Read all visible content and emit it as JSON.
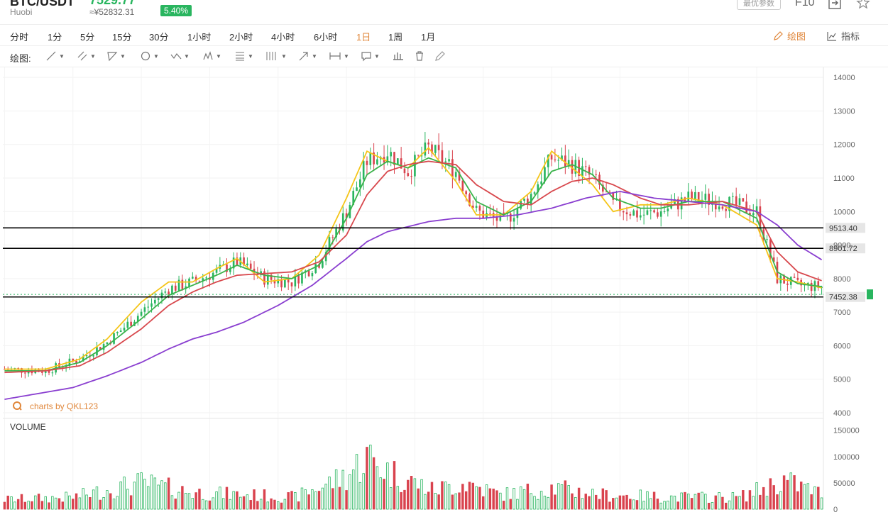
{
  "header": {
    "pair": "BTC/USDT",
    "exchange": "Huobi",
    "price": "7529.77",
    "price_cny": "≈¥52832.31",
    "change": "5.40%",
    "params_button": "最优参数",
    "f10": "F10",
    "icons": [
      "fullscreen-icon",
      "star-icon"
    ]
  },
  "periods": {
    "tabs": [
      "分时",
      "1分",
      "5分",
      "15分",
      "30分",
      "1小时",
      "2小时",
      "4小时",
      "6小时",
      "1日",
      "1周",
      "1月"
    ],
    "active": "1日",
    "draw_label": "绘图",
    "indicator_label": "指标"
  },
  "drawbar": {
    "label": "绘图:",
    "tools": [
      "line-tool-icon",
      "channel-tool-icon",
      "triangle-tool-icon",
      "circle-tool-icon",
      "wave-tool-icon",
      "pattern-tool-icon",
      "fibonacci-tool-icon",
      "gann-tool-icon",
      "arrow-tool-icon",
      "measure-tool-icon",
      "comment-tool-icon",
      "bars-tool-icon",
      "trash-icon",
      "pen-icon"
    ]
  },
  "chart_data": {
    "type": "candlestick",
    "watermark": "charts by QKL123",
    "price_axis": {
      "ticks": [
        4000,
        5000,
        6000,
        7000,
        8000,
        9000,
        10000,
        11000,
        12000,
        13000,
        14000
      ],
      "range": [
        3830,
        14300
      ]
    },
    "horizontal_lines": [
      {
        "value": 9513.4,
        "label": "9513.40"
      },
      {
        "value": 8901.72,
        "label": "8901.72"
      },
      {
        "value": 7452.38,
        "label": "7452.38"
      }
    ],
    "last_price": 7529.77,
    "volume_label": "VOLUME",
    "volume_axis": {
      "ticks": [
        0,
        50000,
        100000,
        150000
      ],
      "tick_labels": [
        "0",
        "50000",
        "100000",
        "150000"
      ],
      "range": [
        0,
        155000
      ]
    },
    "colors": {
      "up": "#29b55f",
      "down": "#d9434e",
      "ma1": "#f5c518",
      "ma2": "#3bb34b",
      "ma3": "#d8484d",
      "ma4": "#8a3fd0",
      "hline": "#000000"
    },
    "bars": 240,
    "price_keys": [
      [
        0,
        5300
      ],
      [
        12,
        5250
      ],
      [
        22,
        5600
      ],
      [
        30,
        6100
      ],
      [
        40,
        7000
      ],
      [
        48,
        7700
      ],
      [
        55,
        7900
      ],
      [
        62,
        8200
      ],
      [
        68,
        8500
      ],
      [
        76,
        8000
      ],
      [
        84,
        7900
      ],
      [
        92,
        8500
      ],
      [
        100,
        10000
      ],
      [
        106,
        11500
      ],
      [
        112,
        11800
      ],
      [
        118,
        11200
      ],
      [
        124,
        11900
      ],
      [
        132,
        11200
      ],
      [
        138,
        10000
      ],
      [
        146,
        9700
      ],
      [
        154,
        10500
      ],
      [
        160,
        11600
      ],
      [
        166,
        11400
      ],
      [
        172,
        11000
      ],
      [
        178,
        10200
      ],
      [
        186,
        9900
      ],
      [
        192,
        10000
      ],
      [
        200,
        10400
      ],
      [
        210,
        10300
      ],
      [
        220,
        10000
      ],
      [
        226,
        8000
      ],
      [
        232,
        7800
      ],
      [
        240,
        7750
      ]
    ],
    "volume_keys": [
      [
        0,
        20000
      ],
      [
        20,
        25000
      ],
      [
        30,
        40000
      ],
      [
        40,
        55000
      ],
      [
        55,
        35000
      ],
      [
        70,
        30000
      ],
      [
        85,
        25000
      ],
      [
        100,
        70000
      ],
      [
        106,
        110000
      ],
      [
        112,
        80000
      ],
      [
        125,
        40000
      ],
      [
        135,
        55000
      ],
      [
        145,
        30000
      ],
      [
        160,
        45000
      ],
      [
        175,
        30000
      ],
      [
        195,
        25000
      ],
      [
        215,
        25000
      ],
      [
        228,
        60000
      ],
      [
        240,
        30000
      ]
    ],
    "series": [
      {
        "name": "MA1",
        "key": "ma1",
        "keys": [
          [
            0,
            5300
          ],
          [
            12,
            5300
          ],
          [
            22,
            5600
          ],
          [
            30,
            6200
          ],
          [
            40,
            7300
          ],
          [
            48,
            7900
          ],
          [
            55,
            7900
          ],
          [
            62,
            8300
          ],
          [
            68,
            8600
          ],
          [
            76,
            7900
          ],
          [
            84,
            8000
          ],
          [
            92,
            8700
          ],
          [
            100,
            10400
          ],
          [
            106,
            11800
          ],
          [
            112,
            11500
          ],
          [
            118,
            11300
          ],
          [
            124,
            11900
          ],
          [
            132,
            10900
          ],
          [
            138,
            9900
          ],
          [
            146,
            9900
          ],
          [
            154,
            10600
          ],
          [
            160,
            11800
          ],
          [
            166,
            11300
          ],
          [
            172,
            10800
          ],
          [
            178,
            10000
          ],
          [
            186,
            10200
          ],
          [
            192,
            10200
          ],
          [
            200,
            10400
          ],
          [
            210,
            10200
          ],
          [
            220,
            9600
          ],
          [
            226,
            8000
          ],
          [
            232,
            7900
          ],
          [
            240,
            7700
          ]
        ]
      },
      {
        "name": "MA2",
        "key": "ma2",
        "keys": [
          [
            0,
            5250
          ],
          [
            12,
            5250
          ],
          [
            22,
            5500
          ],
          [
            30,
            6000
          ],
          [
            40,
            6800
          ],
          [
            48,
            7500
          ],
          [
            55,
            7800
          ],
          [
            62,
            8100
          ],
          [
            68,
            8400
          ],
          [
            76,
            8100
          ],
          [
            84,
            8000
          ],
          [
            92,
            8400
          ],
          [
            100,
            9800
          ],
          [
            106,
            11100
          ],
          [
            112,
            11500
          ],
          [
            118,
            11300
          ],
          [
            124,
            11600
          ],
          [
            132,
            11300
          ],
          [
            138,
            10300
          ],
          [
            146,
            9900
          ],
          [
            154,
            10300
          ],
          [
            160,
            11200
          ],
          [
            166,
            11400
          ],
          [
            172,
            11100
          ],
          [
            178,
            10400
          ],
          [
            186,
            10100
          ],
          [
            192,
            10100
          ],
          [
            200,
            10300
          ],
          [
            210,
            10300
          ],
          [
            220,
            9800
          ],
          [
            226,
            8200
          ],
          [
            232,
            7850
          ],
          [
            240,
            7750
          ]
        ]
      },
      {
        "name": "MA3",
        "key": "ma3",
        "keys": [
          [
            0,
            5200
          ],
          [
            12,
            5250
          ],
          [
            22,
            5400
          ],
          [
            30,
            5800
          ],
          [
            40,
            6500
          ],
          [
            48,
            7200
          ],
          [
            55,
            7600
          ],
          [
            62,
            7900
          ],
          [
            68,
            8100
          ],
          [
            76,
            8150
          ],
          [
            84,
            8200
          ],
          [
            92,
            8500
          ],
          [
            100,
            9300
          ],
          [
            106,
            10500
          ],
          [
            112,
            11200
          ],
          [
            118,
            11400
          ],
          [
            124,
            11500
          ],
          [
            132,
            11400
          ],
          [
            138,
            10800
          ],
          [
            146,
            10300
          ],
          [
            154,
            10200
          ],
          [
            160,
            10600
          ],
          [
            166,
            10900
          ],
          [
            172,
            11000
          ],
          [
            178,
            10800
          ],
          [
            186,
            10400
          ],
          [
            192,
            10200
          ],
          [
            200,
            10200
          ],
          [
            210,
            10300
          ],
          [
            220,
            10000
          ],
          [
            226,
            8800
          ],
          [
            232,
            8200
          ],
          [
            240,
            7900
          ]
        ]
      },
      {
        "name": "MA4",
        "key": "ma4",
        "keys": [
          [
            0,
            4400
          ],
          [
            20,
            4750
          ],
          [
            30,
            5100
          ],
          [
            40,
            5500
          ],
          [
            48,
            5900
          ],
          [
            55,
            6200
          ],
          [
            62,
            6400
          ],
          [
            70,
            6700
          ],
          [
            80,
            7200
          ],
          [
            90,
            7800
          ],
          [
            100,
            8600
          ],
          [
            106,
            9100
          ],
          [
            112,
            9400
          ],
          [
            118,
            9550
          ],
          [
            124,
            9700
          ],
          [
            132,
            9800
          ],
          [
            140,
            9800
          ],
          [
            150,
            9900
          ],
          [
            160,
            10100
          ],
          [
            170,
            10400
          ],
          [
            180,
            10600
          ],
          [
            190,
            10400
          ],
          [
            200,
            10300
          ],
          [
            210,
            10200
          ],
          [
            220,
            10000
          ],
          [
            226,
            9600
          ],
          [
            232,
            9000
          ],
          [
            240,
            8500
          ]
        ]
      }
    ]
  }
}
